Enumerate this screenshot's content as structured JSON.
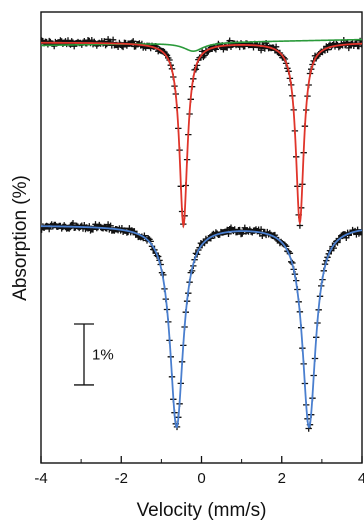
{
  "chart_data": {
    "type": "line",
    "title": "",
    "xlabel": "Velocity (mm/s)",
    "ylabel": "Absorption (%)",
    "xlim": [
      -4,
      4
    ],
    "x_ticks": [
      -4,
      -2,
      0,
      2,
      4
    ],
    "x_tick_labels": [
      "-4",
      "-2",
      "0",
      "2",
      "4"
    ],
    "y_ticks_shown": false,
    "grid": false,
    "legend": "none",
    "ylim_percent": [
      -6.9,
      0.5
    ],
    "scale_bar": {
      "label": "1%",
      "value_percent": 1
    },
    "markers": "plus",
    "colors": {
      "data": "#111111",
      "top_fit": "#e0352b",
      "top_component": "#2a9a3a",
      "bottom_fit": "#4a7fcf"
    },
    "spectra": [
      {
        "id": "top",
        "baseline_percent": 0,
        "data_noise_percent": 0.07,
        "fit": {
          "color_key": "top_fit",
          "lines": [
            {
              "center": -0.45,
              "hwhm": 0.12,
              "depth_percent": 3.0
            },
            {
              "center": 2.45,
              "hwhm": 0.12,
              "depth_percent": 2.95
            }
          ]
        },
        "components": [
          {
            "color_key": "top_component",
            "baseline_percent": 0,
            "slope_percent_per_mm_s": 0.012,
            "lines": [
              {
                "center": -0.2,
                "hwhm": 0.3,
                "depth_percent": 0.14
              }
            ]
          }
        ]
      },
      {
        "id": "bottom",
        "baseline_percent": -3.0,
        "data_noise_percent": 0.07,
        "fit": {
          "color_key": "bottom_fit",
          "lines": [
            {
              "center": -0.62,
              "hwhm": 0.2,
              "depth_percent": 3.3
            },
            {
              "center": 2.68,
              "hwhm": 0.2,
              "depth_percent": 3.3
            }
          ]
        },
        "components": []
      }
    ]
  }
}
